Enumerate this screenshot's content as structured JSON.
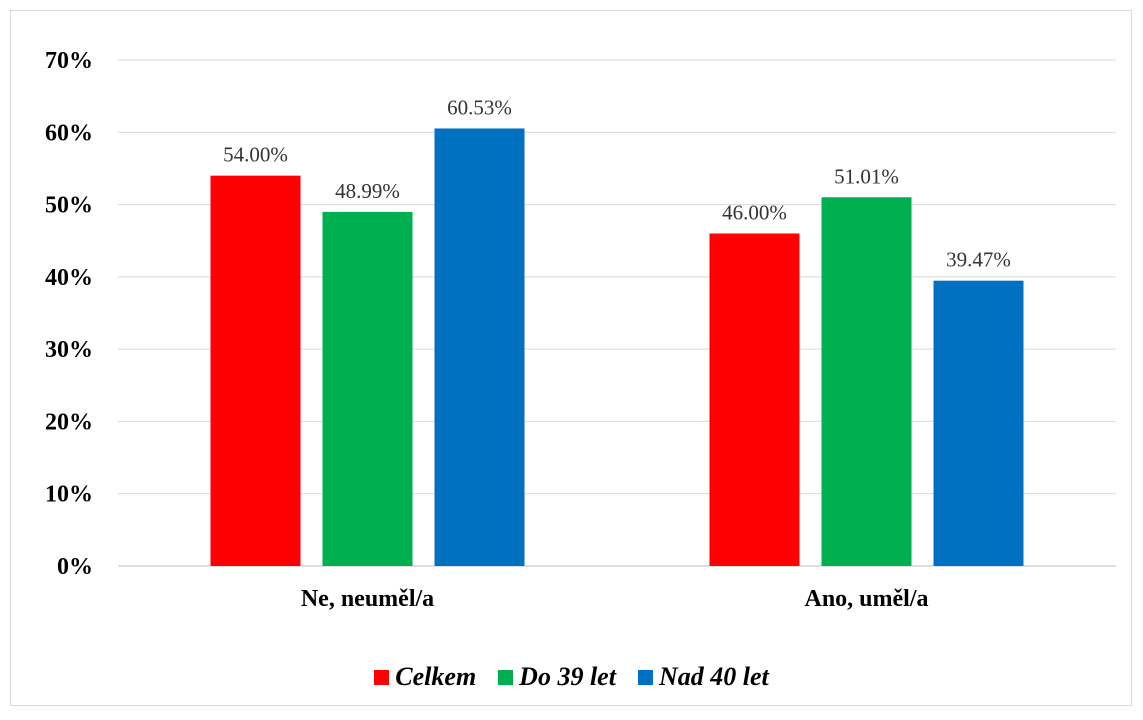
{
  "chart_data": {
    "type": "bar",
    "categories": [
      "Ne, neuměl/a",
      "Ano, uměl/a"
    ],
    "series": [
      {
        "name": "Celkem",
        "values": [
          54.0,
          46.0
        ],
        "labels": [
          "54.00%",
          "46.00%"
        ],
        "color": "#ff0000"
      },
      {
        "name": "Do 39 let",
        "values": [
          48.99,
          51.01
        ],
        "labels": [
          "48.99%",
          "51.01%"
        ],
        "color": "#00b050"
      },
      {
        "name": "Nad 40 let",
        "values": [
          60.53,
          39.47
        ],
        "labels": [
          "60.53%",
          "39.47%"
        ],
        "color": "#0070c0"
      }
    ],
    "ylim": [
      0,
      70
    ],
    "yticks": [
      0,
      10,
      20,
      30,
      40,
      50,
      60,
      70
    ],
    "ytick_labels": [
      "0%",
      "10%",
      "20%",
      "30%",
      "40%",
      "50%",
      "60%",
      "70%"
    ],
    "grid": true,
    "legend_position": "bottom",
    "colors": {
      "gridline": "#d9d9d9",
      "axis": "#bfbfbf"
    }
  }
}
